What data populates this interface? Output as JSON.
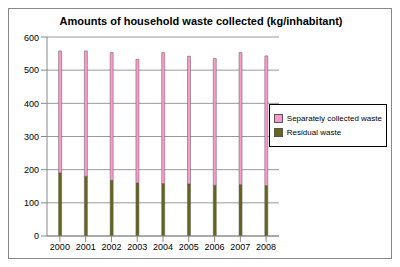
{
  "chart_data": {
    "type": "bar",
    "title": "Amounts of household waste collected (kg/inhabitant)",
    "stacked": true,
    "grid": true,
    "legend": "right",
    "categories": [
      "2000",
      "2001",
      "2002",
      "2003",
      "2004",
      "2005",
      "2006",
      "2007",
      "2008"
    ],
    "series": [
      {
        "name": "Residual waste",
        "color": "#666619",
        "values": [
          190,
          180,
          168,
          160,
          158,
          157,
          153,
          155,
          152
        ]
      },
      {
        "name": "Separately collected waste",
        "color": "#ff99cc",
        "values": [
          368,
          378,
          385,
          373,
          395,
          385,
          382,
          398,
          391
        ]
      }
    ],
    "ylim": [
      0,
      600
    ],
    "yticks": [
      0,
      100,
      200,
      300,
      400,
      500,
      600
    ]
  }
}
